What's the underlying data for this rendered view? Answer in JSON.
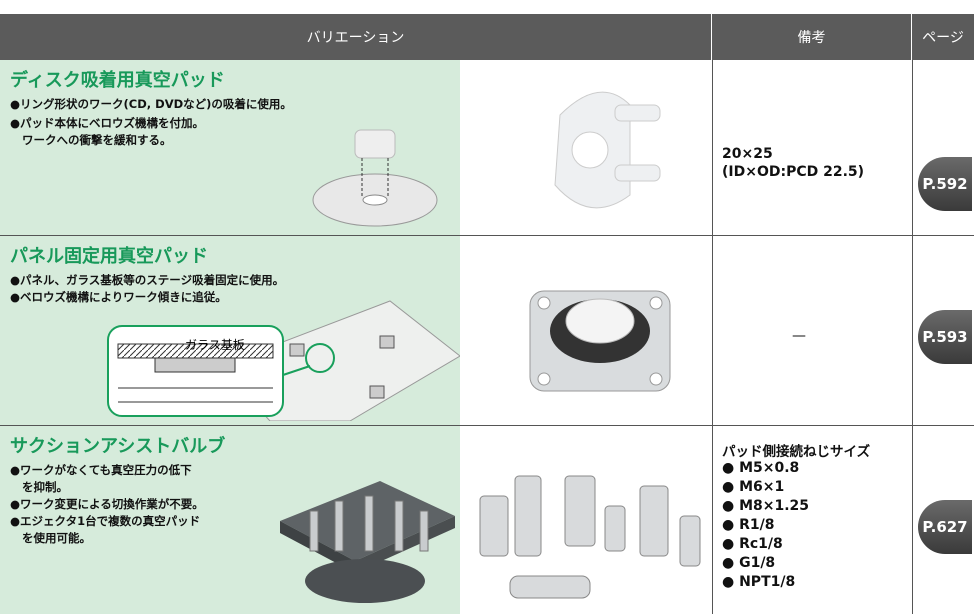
{
  "header": {
    "variation": "バリエーション",
    "remarks": "備考",
    "page": "ページ"
  },
  "rows": [
    {
      "title": "ディスク吸着用真空パッド",
      "lines": [
        "●リング形状のワーク(CD, DVDなど)の吸着に使用。",
        "●パッド本体にベロウズ機構を付加。",
        "ワークへの衝撃を緩和する。"
      ],
      "remarks": [
        "20×25",
        "(ID×OD:PCD 22.5)"
      ],
      "page": "P.592"
    },
    {
      "title": "パネル固定用真空パッド",
      "lines": [
        "●パネル、ガラス基板等のステージ吸着固定に使用。",
        "●ベロウズ機構によりワーク傾きに追従。"
      ],
      "inset_label": "ガラス基板",
      "remarks": [
        "—"
      ],
      "page": "P.593"
    },
    {
      "title": "サクションアシストバルブ",
      "lines": [
        "●ワークがなくても真空圧力の低下",
        "を抑制。",
        "●ワーク変更による切換作業が不要。",
        "●エジェクタ1台で複数の真空パッド",
        "を使用可能。"
      ],
      "remarks": [
        "パッド側接続ねじサイズ",
        "● M5×0.8",
        "● M6×1",
        "● M8×1.25",
        "● R1/8",
        "● Rc1/8",
        "● G1/8",
        "● NPT1/8"
      ],
      "page": "P.627"
    }
  ]
}
